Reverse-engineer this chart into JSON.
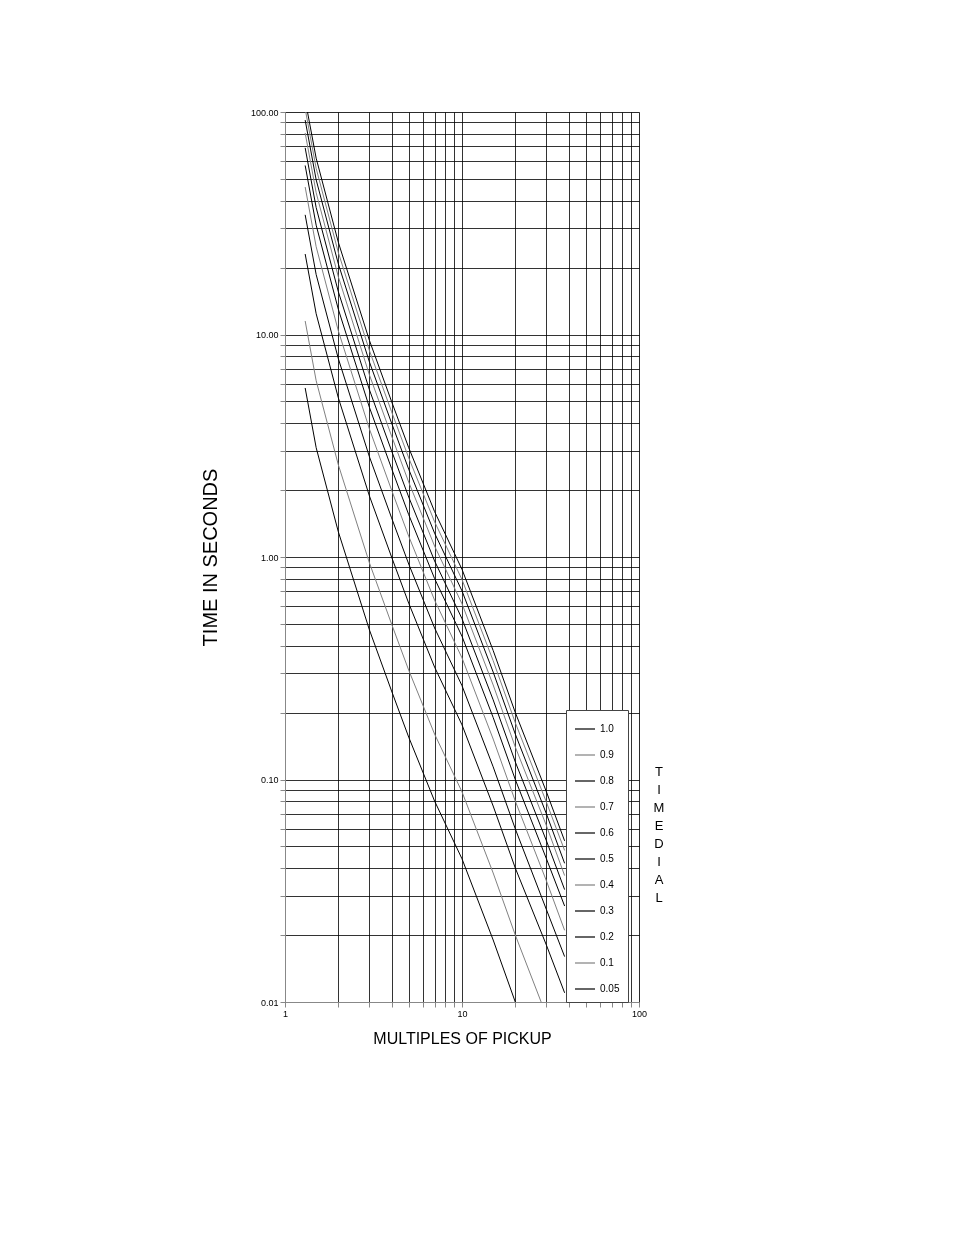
{
  "chart_data": {
    "type": "line",
    "xlabel": "MULTIPLES OF PICKUP",
    "ylabel": "TIME IN SECONDS",
    "legend_title": "TIME DIAL",
    "log": "xy",
    "grid": true,
    "legend": "bottom right",
    "xlim": [
      1,
      100
    ],
    "ylim": [
      0.01,
      100
    ],
    "xticks": [
      1,
      {
        "value": 2,
        "label": null
      },
      {
        "value": 3,
        "label": null
      },
      {
        "value": 4,
        "label": null
      },
      {
        "value": 5,
        "label": null
      },
      {
        "value": 6,
        "label": null
      },
      {
        "value": 7,
        "label": null
      },
      {
        "value": 8,
        "label": null
      },
      {
        "value": 9,
        "label": null
      },
      10,
      {
        "value": 20,
        "label": null
      },
      {
        "value": 30,
        "label": null
      },
      {
        "value": 40,
        "label": null
      },
      {
        "value": 50,
        "label": null
      },
      {
        "value": 60,
        "label": null
      },
      {
        "value": 70,
        "label": null
      },
      {
        "value": 80,
        "label": null
      },
      {
        "value": 90,
        "label": null
      },
      100
    ],
    "yticks": [
      {
        "value": 0.01,
        "label": "0.01"
      },
      {
        "value": 0.02,
        "label": null
      },
      {
        "value": 0.03,
        "label": null
      },
      {
        "value": 0.04,
        "label": null
      },
      {
        "value": 0.05,
        "label": null
      },
      {
        "value": 0.06,
        "label": null
      },
      {
        "value": 0.07,
        "label": null
      },
      {
        "value": 0.08,
        "label": null
      },
      {
        "value": 0.09,
        "label": null
      },
      {
        "value": 0.1,
        "label": "0.10"
      },
      {
        "value": 0.2,
        "label": null
      },
      {
        "value": 0.3,
        "label": null
      },
      {
        "value": 0.4,
        "label": null
      },
      {
        "value": 0.5,
        "label": null
      },
      {
        "value": 0.6,
        "label": null
      },
      {
        "value": 0.7,
        "label": null
      },
      {
        "value": 0.8,
        "label": null
      },
      {
        "value": 0.9,
        "label": null
      },
      {
        "value": 1,
        "label": "1.00"
      },
      {
        "value": 2,
        "label": null
      },
      {
        "value": 3,
        "label": null
      },
      {
        "value": 4,
        "label": null
      },
      {
        "value": 5,
        "label": null
      },
      {
        "value": 6,
        "label": null
      },
      {
        "value": 7,
        "label": null
      },
      {
        "value": 8,
        "label": null
      },
      {
        "value": 9,
        "label": null
      },
      {
        "value": 10,
        "label": "10.00"
      },
      {
        "value": 20,
        "label": null
      },
      {
        "value": 30,
        "label": null
      },
      {
        "value": 40,
        "label": null
      },
      {
        "value": 50,
        "label": null
      },
      {
        "value": 60,
        "label": null
      },
      {
        "value": 70,
        "label": null
      },
      {
        "value": 80,
        "label": null
      },
      {
        "value": 90,
        "label": null
      },
      {
        "value": 100,
        "label": "100.00"
      }
    ],
    "series": [
      {
        "name": "1.0",
        "color": "#000000",
        "x": [
          1.34,
          1.5,
          2,
          3,
          4,
          5,
          7,
          10,
          15,
          20,
          30,
          38
        ],
        "values": [
          100,
          62,
          26,
          9.4,
          5.0,
          3.1,
          1.6,
          0.88,
          0.38,
          0.2,
          0.088,
          0.053
        ]
      },
      {
        "name": "0.9",
        "color": "#808080",
        "x": [
          1.31,
          1.5,
          2,
          3,
          4,
          5,
          7,
          10,
          15,
          20,
          30,
          38
        ],
        "values": [
          100,
          55.8,
          23.4,
          8.46,
          4.5,
          2.79,
          1.44,
          0.792,
          0.342,
          0.18,
          0.079,
          0.048
        ]
      },
      {
        "name": "0.8",
        "color": "#000000",
        "x": [
          1.3,
          1.5,
          2,
          3,
          4,
          5,
          7,
          10,
          15,
          20,
          30,
          38
        ],
        "values": [
          92,
          49.6,
          20.8,
          7.52,
          4.0,
          2.48,
          1.28,
          0.704,
          0.304,
          0.16,
          0.07,
          0.042
        ]
      },
      {
        "name": "0.7",
        "color": "#808080",
        "x": [
          1.3,
          1.5,
          2,
          3,
          4,
          5,
          7,
          10,
          15,
          20,
          30,
          38
        ],
        "values": [
          80.5,
          43.4,
          18.2,
          6.58,
          3.5,
          2.17,
          1.12,
          0.616,
          0.266,
          0.14,
          0.062,
          0.037
        ]
      },
      {
        "name": "0.6",
        "color": "#000000",
        "x": [
          1.3,
          1.5,
          2,
          3,
          4,
          5,
          7,
          10,
          15,
          20,
          30,
          38
        ],
        "values": [
          69,
          37.2,
          15.6,
          5.64,
          3.0,
          1.86,
          0.96,
          0.528,
          0.228,
          0.12,
          0.053,
          0.032
        ]
      },
      {
        "name": "0.5",
        "color": "#000000",
        "x": [
          1.3,
          1.5,
          2,
          3,
          4,
          5,
          7,
          10,
          15,
          20,
          30,
          38
        ],
        "values": [
          57.5,
          31,
          13,
          4.7,
          2.5,
          1.55,
          0.8,
          0.44,
          0.19,
          0.1,
          0.044,
          0.027
        ]
      },
      {
        "name": "0.4",
        "color": "#808080",
        "x": [
          1.3,
          1.5,
          2,
          3,
          4,
          5,
          7,
          10,
          15,
          20,
          30,
          38
        ],
        "values": [
          46,
          24.8,
          10.4,
          3.76,
          2.0,
          1.24,
          0.64,
          0.352,
          0.152,
          0.08,
          0.035,
          0.021
        ]
      },
      {
        "name": "0.3",
        "color": "#000000",
        "x": [
          1.3,
          1.5,
          2,
          3,
          4,
          5,
          7,
          10,
          15,
          20,
          30,
          38
        ],
        "values": [
          34.5,
          18.6,
          7.8,
          2.82,
          1.5,
          0.93,
          0.48,
          0.264,
          0.114,
          0.06,
          0.026,
          0.016
        ]
      },
      {
        "name": "0.2",
        "color": "#000000",
        "x": [
          1.3,
          1.5,
          2,
          3,
          4,
          5,
          7,
          10,
          15,
          20,
          30,
          38
        ],
        "values": [
          23,
          12.4,
          5.2,
          1.88,
          1.0,
          0.62,
          0.32,
          0.176,
          0.076,
          0.04,
          0.018,
          0.011
        ]
      },
      {
        "name": "0.1",
        "color": "#808080",
        "x": [
          1.3,
          1.5,
          2,
          3,
          4,
          5,
          7,
          10,
          15,
          20,
          28
        ],
        "values": [
          11.5,
          6.2,
          2.6,
          0.94,
          0.5,
          0.31,
          0.16,
          0.088,
          0.038,
          0.02,
          0.01
        ]
      },
      {
        "name": "0.05",
        "color": "#000000",
        "x": [
          1.3,
          1.5,
          2,
          3,
          4,
          5,
          7,
          10,
          15,
          20
        ],
        "values": [
          5.75,
          3.1,
          1.3,
          0.47,
          0.25,
          0.155,
          0.08,
          0.044,
          0.019,
          0.01
        ]
      }
    ]
  }
}
